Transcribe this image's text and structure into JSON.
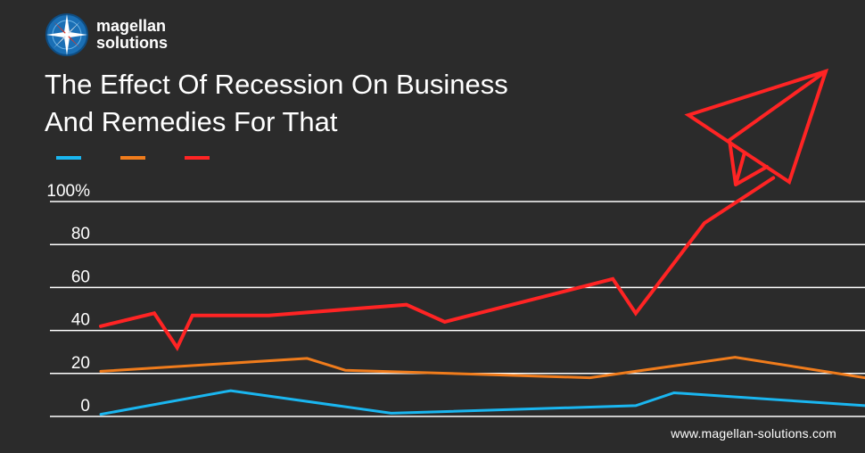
{
  "brand": {
    "line1": "magellan",
    "line2": "solutions",
    "logo_icon": "compass-icon",
    "colors": {
      "primary": "#1a6fb5",
      "accent": "#d73a2e"
    }
  },
  "title": {
    "line1": "The Effect Of Recession On Business",
    "line2": "And Remedies For That"
  },
  "footer": {
    "url": "www.magellan-solutions.com"
  },
  "chart_data": {
    "type": "line",
    "title": "",
    "xlabel": "",
    "ylabel": "",
    "ylim": [
      0,
      100
    ],
    "xlim": [
      0,
      100
    ],
    "grid": true,
    "legend_position": "top-left",
    "y_ticks": [
      "100%",
      "80",
      "60",
      "40",
      "20",
      "0"
    ],
    "y_tick_values": [
      100,
      80,
      60,
      40,
      20,
      0
    ],
    "series": [
      {
        "color": "#1ab6f0",
        "points": [
          [
            0,
            1
          ],
          [
            17,
            12
          ],
          [
            38,
            1.5
          ],
          [
            70,
            5
          ],
          [
            75,
            11
          ],
          [
            100,
            5
          ]
        ]
      },
      {
        "color": "#f07c1c",
        "points": [
          [
            0,
            21
          ],
          [
            27,
            27
          ],
          [
            32,
            21.5
          ],
          [
            64,
            18
          ],
          [
            83,
            27.5
          ],
          [
            100,
            18
          ]
        ]
      },
      {
        "color": "#ff2424",
        "points": [
          [
            0,
            42
          ],
          [
            7,
            48
          ],
          [
            10,
            32
          ],
          [
            12,
            47
          ],
          [
            22,
            47
          ],
          [
            40,
            52
          ],
          [
            45,
            44
          ],
          [
            67,
            64
          ],
          [
            70,
            48
          ],
          [
            79,
            90
          ],
          [
            88,
            111
          ]
        ]
      }
    ],
    "annotations": [
      {
        "icon": "paper-plane-icon",
        "color": "#ff2424"
      }
    ]
  }
}
